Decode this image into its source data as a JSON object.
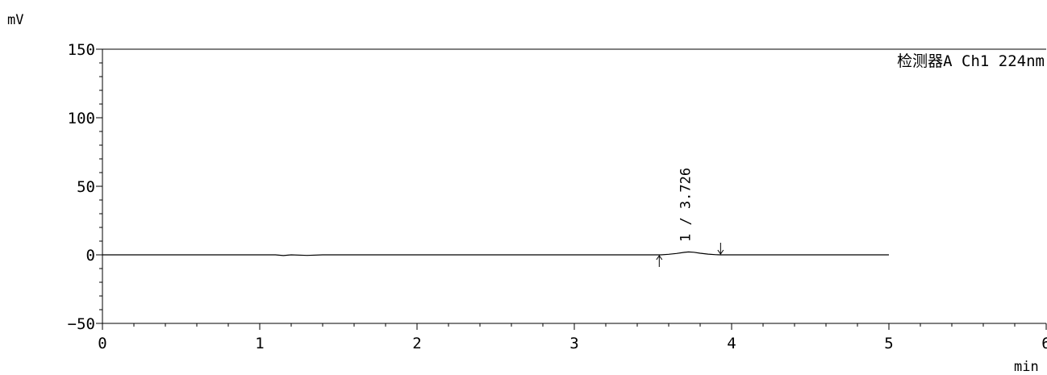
{
  "chart_data": {
    "type": "line",
    "detector_label": "检测器A Ch1 224nm",
    "y_unit": "mV",
    "x_unit": "min",
    "xlim": [
      0,
      6
    ],
    "ylim": [
      -50,
      150
    ],
    "x_ticks": [
      0,
      1,
      2,
      3,
      4,
      5,
      6
    ],
    "y_ticks": [
      -50,
      0,
      50,
      100,
      150
    ],
    "grid": false,
    "series": [
      {
        "x": [
          0,
          1.0,
          1.1,
          1.15,
          1.2,
          1.3,
          1.4,
          1.5,
          1.6,
          2.0,
          2.4,
          2.7,
          3.0,
          3.3,
          3.5,
          3.55,
          3.6,
          3.65,
          3.7,
          3.726,
          3.76,
          3.8,
          3.85,
          3.9,
          3.93,
          4.0,
          4.5,
          5.0
        ],
        "y": [
          0,
          0,
          0,
          -0.5,
          0,
          -0.4,
          0,
          0,
          0,
          0,
          0,
          0,
          0,
          0,
          0,
          0,
          0.4,
          1.0,
          1.8,
          2.1,
          1.9,
          1.2,
          0.5,
          0.1,
          0,
          0,
          0,
          0
        ]
      }
    ],
    "peaks": [
      {
        "label": "1 / 3.726",
        "retention_time": 3.726,
        "start": 3.54,
        "end": 3.93
      }
    ]
  }
}
